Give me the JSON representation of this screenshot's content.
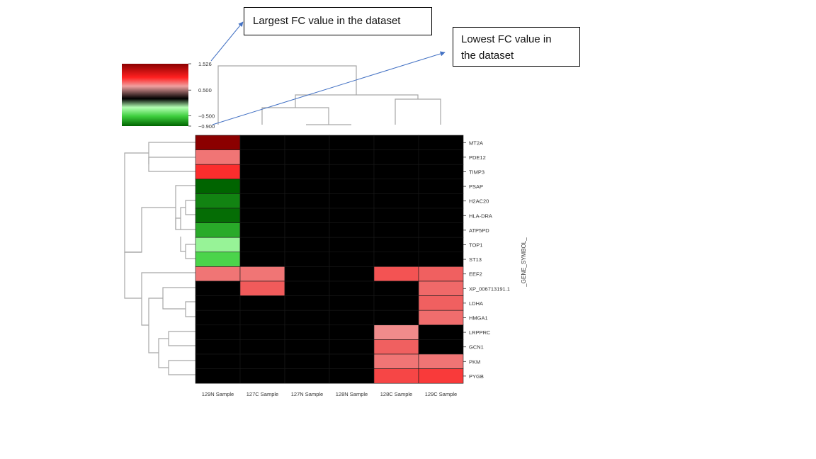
{
  "chart_data": {
    "type": "heatmap",
    "ylabel": "_GENE_SYMBOL_",
    "columns": [
      "129N Sample",
      "127C Sample",
      "127N Sample",
      "128N Sample",
      "128C Sample",
      "129C Sample"
    ],
    "rows": [
      "MT2A",
      "PDE12",
      "TIMP3",
      "PSAP",
      "H2AC20",
      "HLA-DRA",
      "ATP5PD",
      "TOP1",
      "ST13",
      "EEF2",
      "XP_006713191.1",
      "LDHA",
      "HMGA1",
      "LRPPRC",
      "GCN1",
      "PKM",
      "PYGB"
    ],
    "values": [
      [
        1.526,
        0,
        0,
        0,
        0,
        0
      ],
      [
        0.95,
        0,
        0,
        0,
        0,
        0
      ],
      [
        1.2,
        0,
        0,
        0,
        0,
        0
      ],
      [
        -0.85,
        0,
        0,
        0,
        0,
        0
      ],
      [
        -0.75,
        0,
        0,
        0,
        0,
        0
      ],
      [
        -0.82,
        0,
        0,
        0,
        0,
        0
      ],
      [
        -0.62,
        0,
        0,
        0,
        0,
        0
      ],
      [
        -0.35,
        0,
        0,
        0,
        0,
        0
      ],
      [
        -0.48,
        0,
        0,
        0,
        0,
        0
      ],
      [
        0.95,
        0.95,
        0,
        0,
        1.05,
        1.0
      ],
      [
        0,
        1.02,
        0,
        0,
        0,
        0.98
      ],
      [
        0,
        0,
        0,
        0,
        0,
        1.0
      ],
      [
        0,
        0,
        0,
        0,
        0,
        0.97
      ],
      [
        0,
        0,
        0,
        0,
        0.9,
        0
      ],
      [
        0,
        0,
        0,
        0,
        1.0,
        0
      ],
      [
        0,
        0,
        0,
        0,
        0.95,
        0.95
      ],
      [
        0,
        0,
        0,
        0,
        1.1,
        1.15
      ]
    ],
    "colorbar": {
      "min": -0.9,
      "max": 1.526,
      "ticks": [
        1.526,
        0.5,
        -0.5,
        -0.9
      ],
      "tick_labels": [
        "1.526",
        "0.500",
        "−0.500",
        "−0.900"
      ],
      "colors": {
        "low": "#006400",
        "mid_low": "#3fcf3f",
        "pale_low": "#b4ffb4",
        "zero": "#000000",
        "pale_high": "#f0a0a0",
        "high": "#ff2020",
        "max": "#8b0000"
      }
    }
  },
  "annotations": {
    "largest": "Largest FC value in the dataset",
    "lowest_line1": "Lowest FC value in",
    "lowest_line2": "the dataset"
  }
}
